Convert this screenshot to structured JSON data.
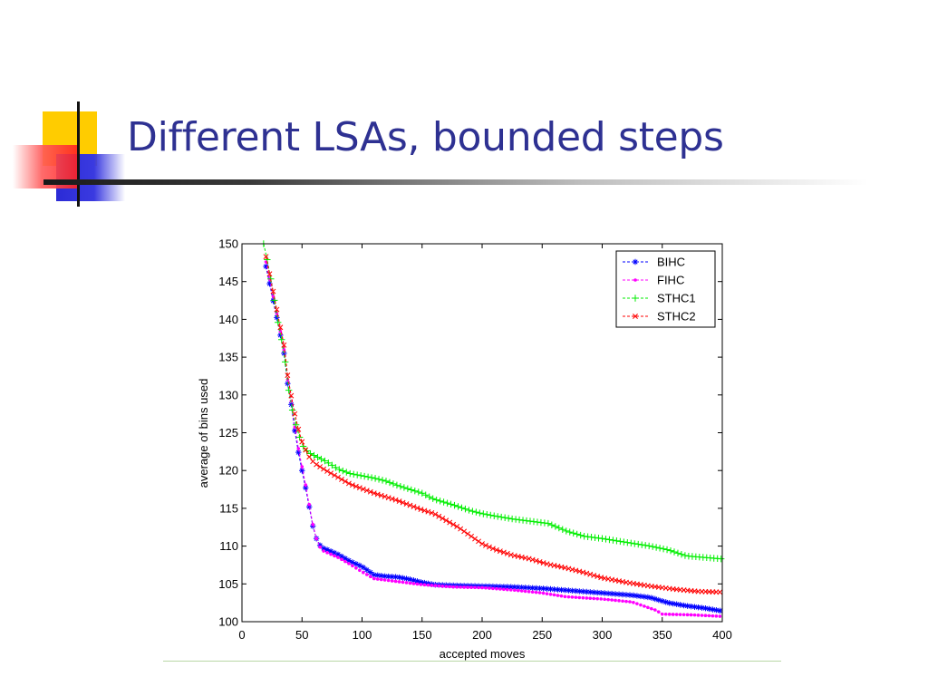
{
  "slide": {
    "title": "Different LSAs, bounded steps"
  },
  "chart_data": {
    "type": "line",
    "title": "",
    "xlabel": "accepted moves",
    "ylabel": "average of bins used",
    "xlim": [
      0,
      400
    ],
    "ylim": [
      100,
      150
    ],
    "xticks": [
      0,
      50,
      100,
      150,
      200,
      250,
      300,
      350,
      400
    ],
    "yticks": [
      100,
      105,
      110,
      115,
      120,
      125,
      130,
      135,
      140,
      145,
      150
    ],
    "grid": false,
    "legend_position": "top-right",
    "series": [
      {
        "name": "BIHC",
        "color": "#0000ff",
        "marker": "*",
        "points": [
          [
            20,
            147
          ],
          [
            25,
            143.2
          ],
          [
            30,
            139.5
          ],
          [
            35,
            135.5
          ],
          [
            38,
            131.5
          ],
          [
            42,
            127.8
          ],
          [
            45,
            124
          ],
          [
            50,
            120
          ],
          [
            55,
            116.2
          ],
          [
            58,
            113.2
          ],
          [
            62,
            111
          ],
          [
            66,
            109.8
          ],
          [
            70,
            109.6
          ],
          [
            80,
            108.9
          ],
          [
            90,
            108
          ],
          [
            100,
            107.3
          ],
          [
            110,
            106.2
          ],
          [
            120,
            106
          ],
          [
            130,
            105.9
          ],
          [
            140,
            105.6
          ],
          [
            150,
            105.2
          ],
          [
            160,
            104.9
          ],
          [
            175,
            104.8
          ],
          [
            200,
            104.7
          ],
          [
            225,
            104.6
          ],
          [
            250,
            104.4
          ],
          [
            275,
            104.1
          ],
          [
            300,
            103.8
          ],
          [
            325,
            103.5
          ],
          [
            340,
            103.2
          ],
          [
            355,
            102.5
          ],
          [
            370,
            102.1
          ],
          [
            385,
            101.8
          ],
          [
            400,
            101.4
          ]
        ]
      },
      {
        "name": "FIHC",
        "color": "#ff00ff",
        "marker": ".",
        "points": [
          [
            20,
            147.6
          ],
          [
            25,
            143.8
          ],
          [
            30,
            140
          ],
          [
            35,
            136
          ],
          [
            38,
            132
          ],
          [
            42,
            128.2
          ],
          [
            45,
            124.5
          ],
          [
            50,
            120.5
          ],
          [
            55,
            116.5
          ],
          [
            58,
            113.5
          ],
          [
            62,
            111
          ],
          [
            66,
            109.5
          ],
          [
            70,
            109.2
          ],
          [
            80,
            108.5
          ],
          [
            90,
            107.6
          ],
          [
            100,
            106.6
          ],
          [
            110,
            105.7
          ],
          [
            120,
            105.5
          ],
          [
            130,
            105.3
          ],
          [
            140,
            105.1
          ],
          [
            150,
            104.9
          ],
          [
            175,
            104.6
          ],
          [
            200,
            104.5
          ],
          [
            225,
            104.2
          ],
          [
            250,
            103.8
          ],
          [
            270,
            103.3
          ],
          [
            300,
            103
          ],
          [
            325,
            102.6
          ],
          [
            345,
            101.5
          ],
          [
            350,
            101
          ],
          [
            375,
            100.9
          ],
          [
            400,
            100.7
          ]
        ]
      },
      {
        "name": "STHC1",
        "color": "#00ee00",
        "marker": "+",
        "points": [
          [
            18,
            150
          ],
          [
            22,
            147.2
          ],
          [
            26,
            143.5
          ],
          [
            30,
            139.6
          ],
          [
            35,
            135.8
          ],
          [
            38,
            131.5
          ],
          [
            42,
            128
          ],
          [
            46,
            125.4
          ],
          [
            50,
            123.4
          ],
          [
            55,
            122.4
          ],
          [
            60,
            122
          ],
          [
            70,
            121.2
          ],
          [
            80,
            120.2
          ],
          [
            90,
            119.6
          ],
          [
            100,
            119.3
          ],
          [
            110,
            119
          ],
          [
            120,
            118.6
          ],
          [
            130,
            118
          ],
          [
            140,
            117.5
          ],
          [
            150,
            117
          ],
          [
            160,
            116.2
          ],
          [
            175,
            115.5
          ],
          [
            190,
            114.7
          ],
          [
            200,
            114.3
          ],
          [
            210,
            114
          ],
          [
            225,
            113.6
          ],
          [
            240,
            113.3
          ],
          [
            255,
            113
          ],
          [
            270,
            112
          ],
          [
            285,
            111.3
          ],
          [
            300,
            111
          ],
          [
            320,
            110.5
          ],
          [
            340,
            110
          ],
          [
            355,
            109.5
          ],
          [
            370,
            108.7
          ],
          [
            385,
            108.5
          ],
          [
            400,
            108.3
          ]
        ]
      },
      {
        "name": "STHC2",
        "color": "#ff0000",
        "marker": "x",
        "points": [
          [
            20,
            148.3
          ],
          [
            25,
            144.5
          ],
          [
            30,
            140.5
          ],
          [
            35,
            136.6
          ],
          [
            38,
            132.6
          ],
          [
            42,
            129
          ],
          [
            46,
            126
          ],
          [
            50,
            123.8
          ],
          [
            55,
            122
          ],
          [
            60,
            121
          ],
          [
            70,
            120
          ],
          [
            80,
            119.1
          ],
          [
            90,
            118.2
          ],
          [
            100,
            117.6
          ],
          [
            110,
            117
          ],
          [
            120,
            116.5
          ],
          [
            130,
            116
          ],
          [
            140,
            115.4
          ],
          [
            150,
            114.8
          ],
          [
            160,
            114.3
          ],
          [
            170,
            113.4
          ],
          [
            180,
            112.5
          ],
          [
            190,
            111.4
          ],
          [
            200,
            110.3
          ],
          [
            210,
            109.6
          ],
          [
            225,
            108.8
          ],
          [
            240,
            108.3
          ],
          [
            255,
            107.6
          ],
          [
            270,
            107.1
          ],
          [
            285,
            106.5
          ],
          [
            300,
            105.8
          ],
          [
            320,
            105.2
          ],
          [
            340,
            104.7
          ],
          [
            360,
            104.3
          ],
          [
            380,
            104
          ],
          [
            400,
            103.9
          ]
        ]
      }
    ]
  }
}
